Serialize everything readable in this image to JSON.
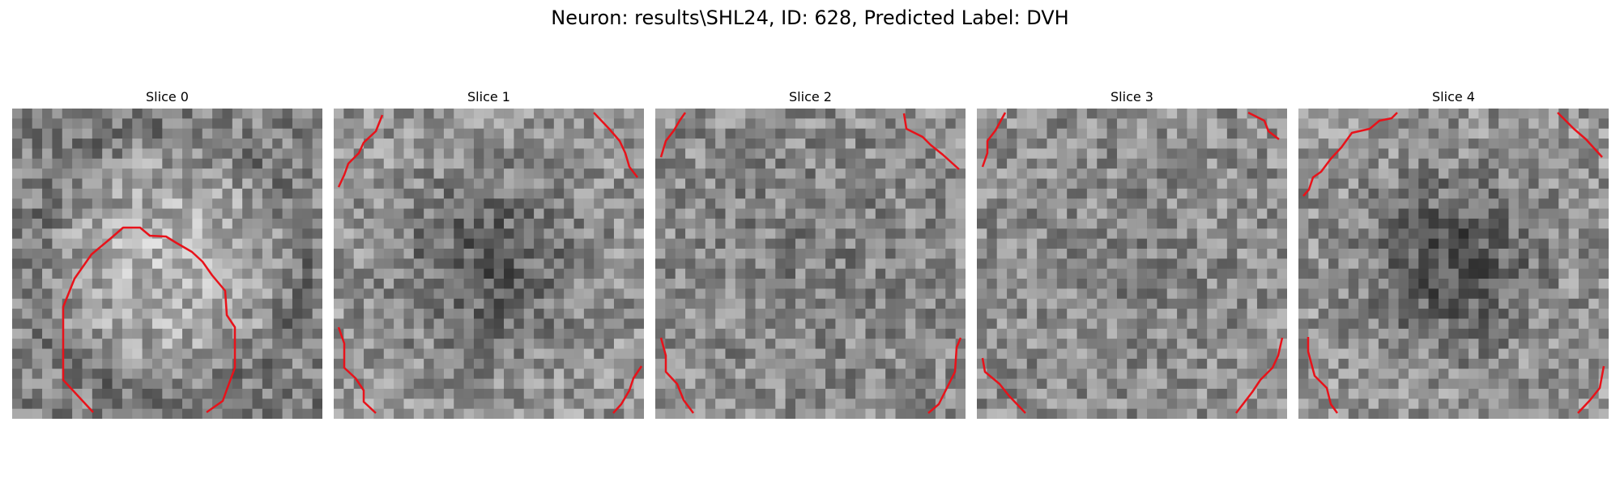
{
  "figure": {
    "title": "Neuron: results\\SHL24, ID: 628, Predicted Label: DVH"
  },
  "overlay_color": "#e8121a",
  "panels": [
    {
      "title": "Slice 0"
    },
    {
      "title": "Slice 1"
    },
    {
      "title": "Slice 2"
    },
    {
      "title": "Slice 3"
    },
    {
      "title": "Slice 4"
    }
  ]
}
